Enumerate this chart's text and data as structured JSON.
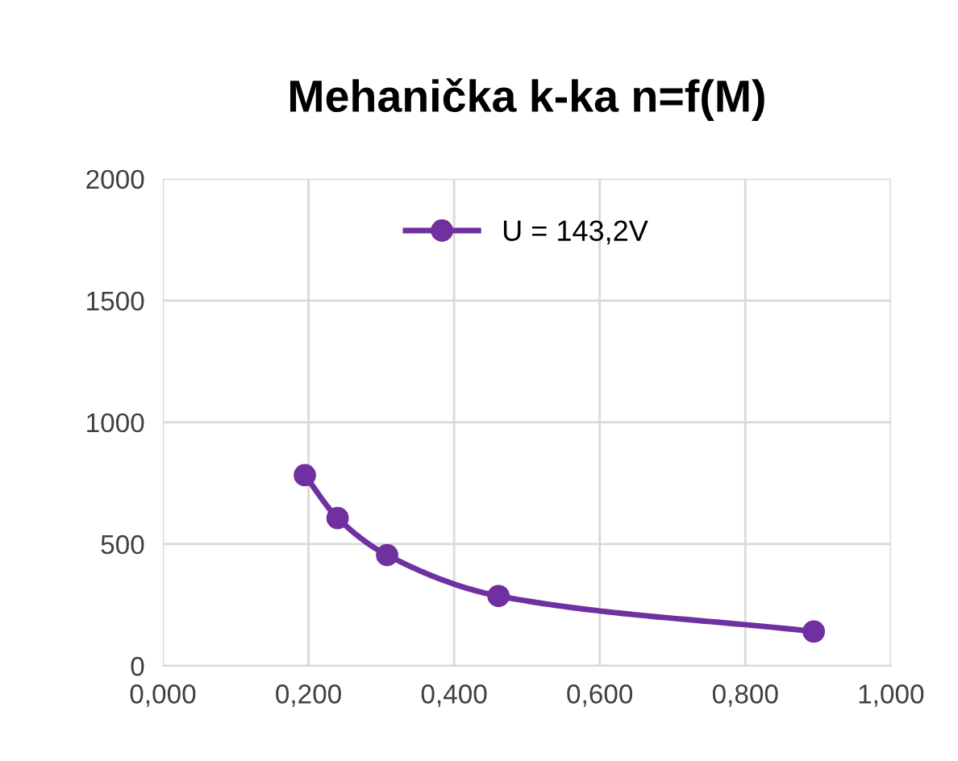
{
  "chart_data": {
    "type": "line",
    "title": "Mehanička k-ka n=f(M)",
    "series": [
      {
        "name": "U = 143,2V",
        "color": "#7030a0",
        "x": [
          0.195,
          0.24,
          0.308,
          0.461,
          0.894
        ],
        "values": [
          783,
          607,
          455,
          287,
          141
        ]
      }
    ],
    "xlim": [
      0,
      1
    ],
    "xticks": [
      {
        "value": 0,
        "label": "0,000"
      },
      {
        "value": 0.2,
        "label": "0,200"
      },
      {
        "value": 0.4,
        "label": "0,400"
      },
      {
        "value": 0.6,
        "label": "0,600"
      },
      {
        "value": 0.8,
        "label": "0,800"
      },
      {
        "value": 1,
        "label": "1,000"
      }
    ],
    "ylim": [
      0,
      2000
    ],
    "yticks": [
      0,
      500,
      1000,
      1500,
      2000
    ],
    "grid": true,
    "legend": "top",
    "marker": "circle",
    "line_style": "solid"
  }
}
